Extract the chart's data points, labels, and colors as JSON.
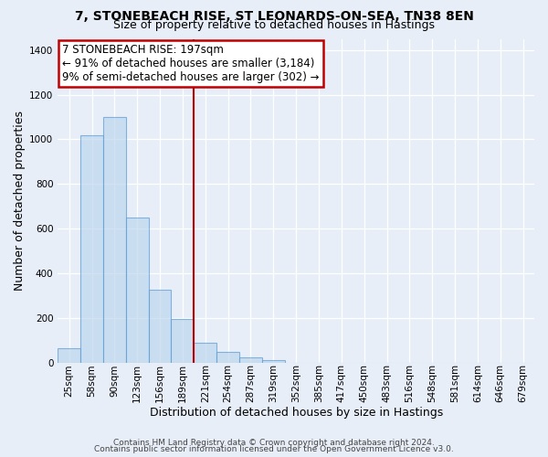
{
  "title1": "7, STONEBEACH RISE, ST LEONARDS-ON-SEA, TN38 8EN",
  "title2": "Size of property relative to detached houses in Hastings",
  "xlabel": "Distribution of detached houses by size in Hastings",
  "ylabel": "Number of detached properties",
  "bar_values": [
    65,
    1020,
    1100,
    650,
    325,
    195,
    90,
    48,
    22,
    10,
    0,
    0,
    0,
    0,
    0,
    0,
    0,
    0,
    0,
    0,
    0
  ],
  "bin_labels": [
    "25sqm",
    "58sqm",
    "90sqm",
    "123sqm",
    "156sqm",
    "189sqm",
    "221sqm",
    "254sqm",
    "287sqm",
    "319sqm",
    "352sqm",
    "385sqm",
    "417sqm",
    "450sqm",
    "483sqm",
    "516sqm",
    "548sqm",
    "581sqm",
    "614sqm",
    "646sqm",
    "679sqm"
  ],
  "bar_color": "#bdd7ee",
  "bar_edge_color": "#5b9bd5",
  "bar_alpha": 0.7,
  "vline_x_index": 6,
  "vline_color": "#c00000",
  "annotation_text": "7 STONEBEACH RISE: 197sqm\n← 91% of detached houses are smaller (3,184)\n9% of semi-detached houses are larger (302) →",
  "annotation_box_color": "#ffffff",
  "annotation_box_edge": "#c00000",
  "ylim": [
    0,
    1450
  ],
  "yticks": [
    0,
    200,
    400,
    600,
    800,
    1000,
    1200,
    1400
  ],
  "footer1": "Contains HM Land Registry data © Crown copyright and database right 2024.",
  "footer2": "Contains public sector information licensed under the Open Government Licence v3.0.",
  "bg_color": "#e8eef8",
  "title_fontsize": 10,
  "subtitle_fontsize": 9,
  "label_fontsize": 9,
  "tick_fontsize": 7.5,
  "footer_fontsize": 6.5,
  "annot_fontsize": 8.5
}
